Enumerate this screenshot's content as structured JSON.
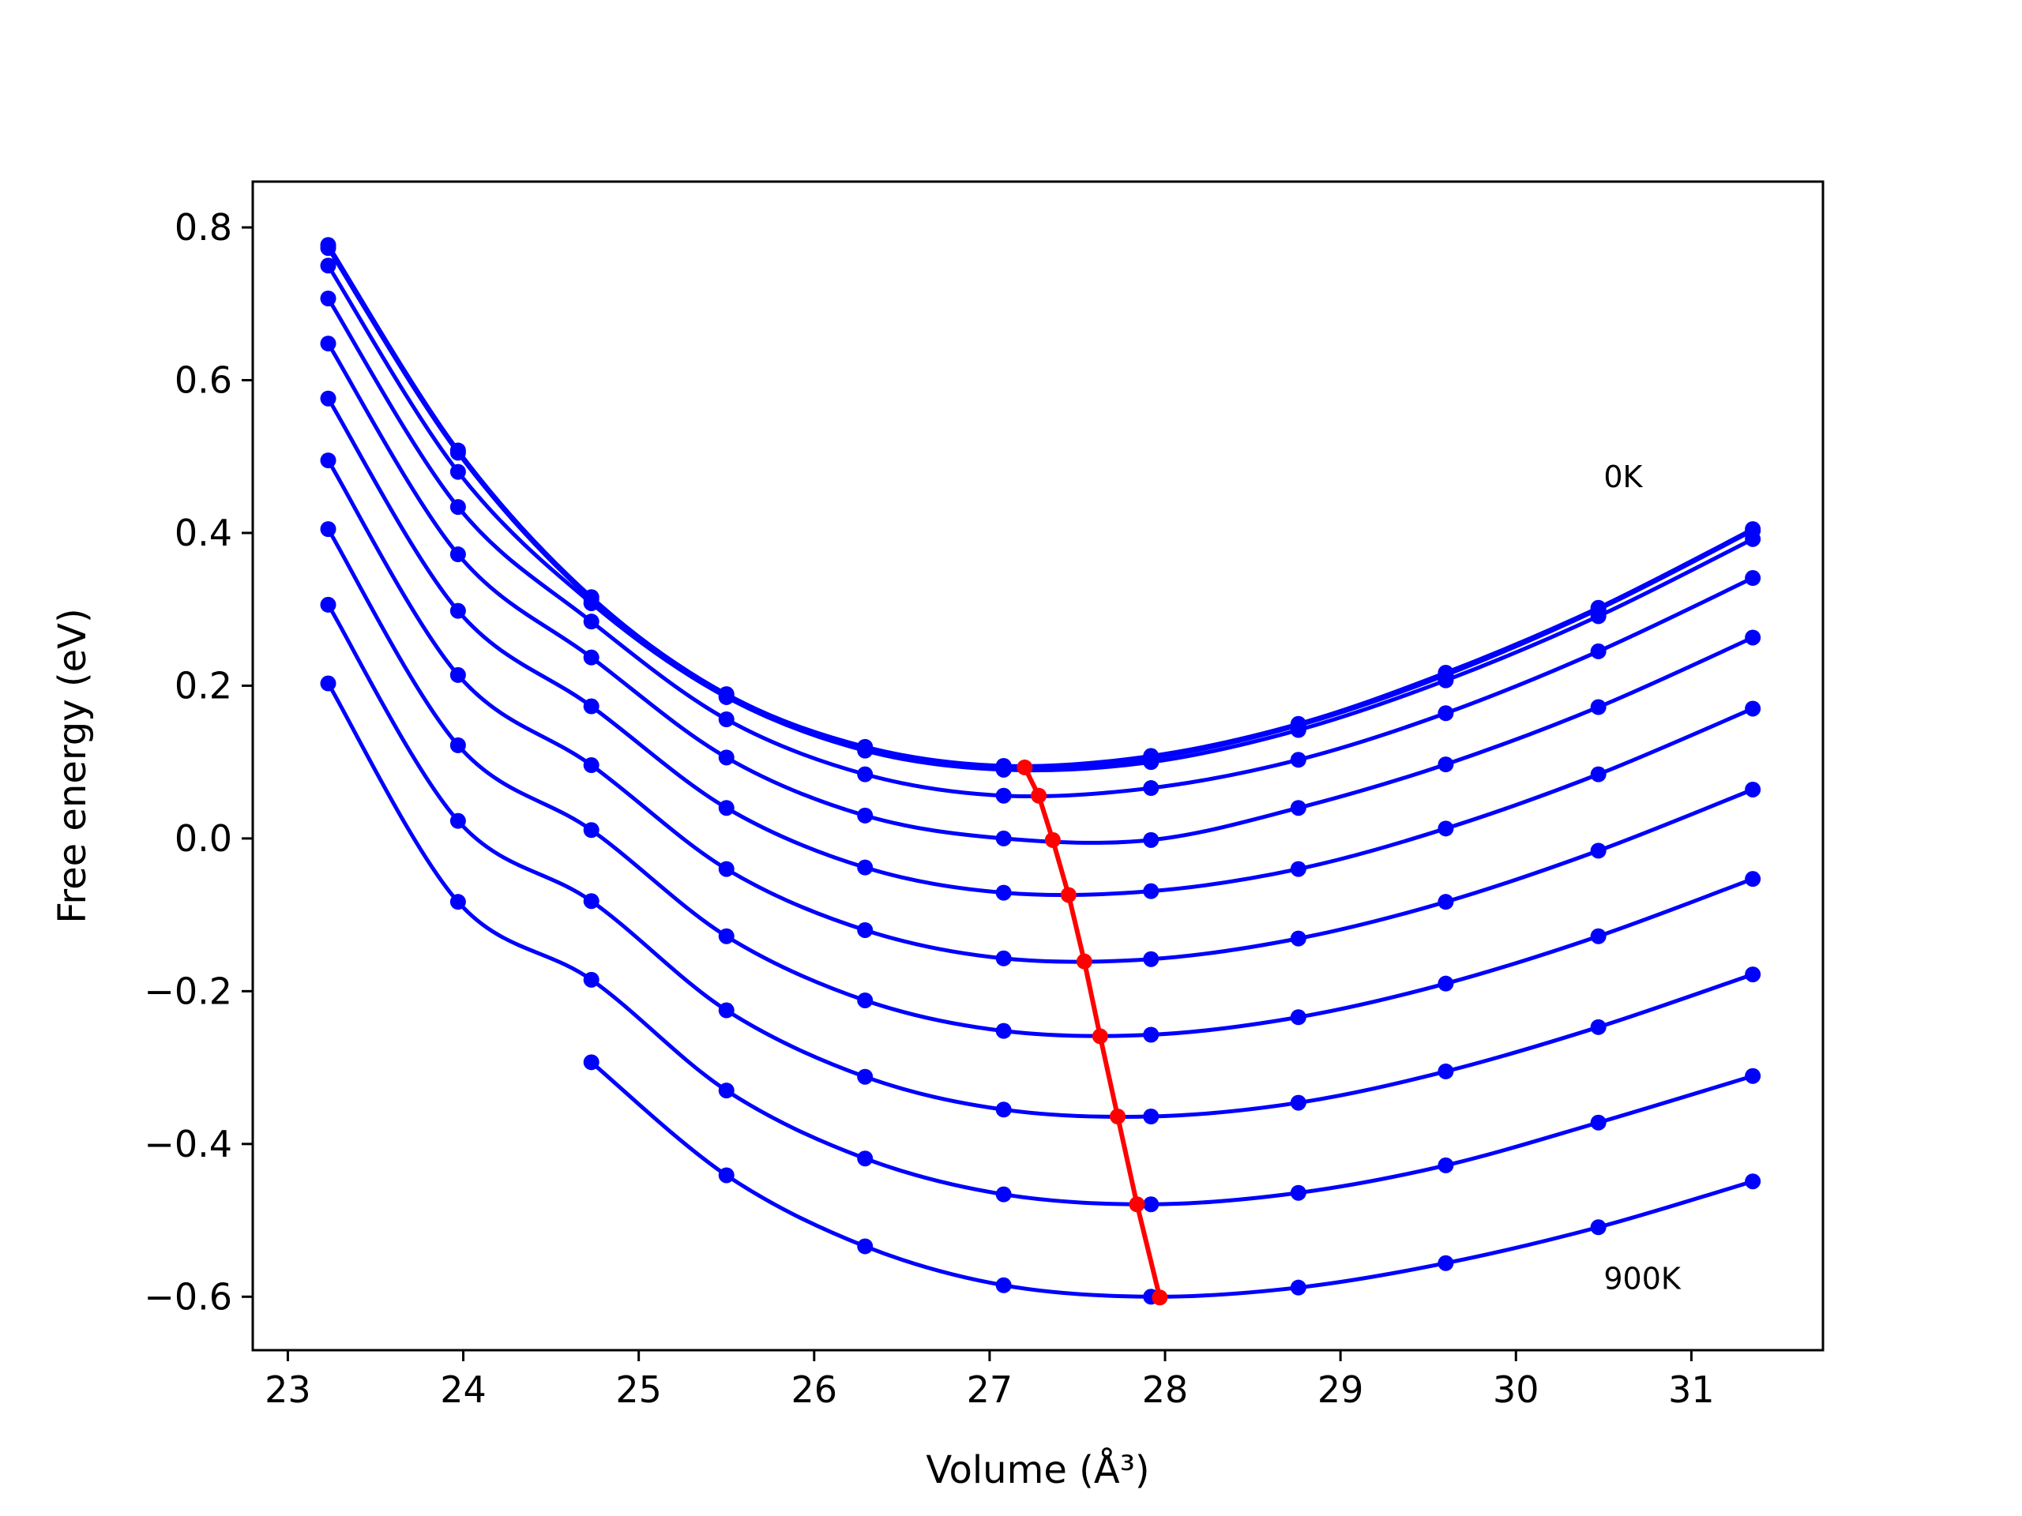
{
  "chart_data": {
    "type": "line",
    "title": "",
    "xlabel": "Volume (Å³)",
    "ylabel": "Free energy (eV)",
    "xlim": [
      22.8,
      31.75
    ],
    "ylim": [
      -0.67,
      0.86
    ],
    "xticks": [
      23,
      24,
      25,
      26,
      27,
      28,
      29,
      30,
      31
    ],
    "yticks": [
      -0.6,
      -0.4,
      -0.2,
      0.0,
      0.2,
      0.4,
      0.6,
      0.8
    ],
    "xtick_labels": [
      "23",
      "24",
      "25",
      "26",
      "27",
      "28",
      "29",
      "30",
      "31"
    ],
    "ytick_labels": [
      "−0.6",
      "−0.4",
      "−0.2",
      "0.0",
      "0.2",
      "0.4",
      "0.6",
      "0.8"
    ],
    "grid": false,
    "x": [
      23.23,
      23.97,
      24.73,
      25.5,
      26.29,
      27.08,
      27.92,
      28.76,
      29.6,
      30.47,
      31.35
    ],
    "series": [
      {
        "values": [
          0.777,
          0.508,
          0.316,
          0.189,
          0.12,
          0.095,
          0.108,
          0.15,
          0.217,
          0.302,
          0.405
        ]
      },
      {
        "values": [
          0.773,
          0.505,
          0.313,
          0.186,
          0.117,
          0.093,
          0.105,
          0.148,
          0.214,
          0.3,
          0.403
        ]
      },
      {
        "values": [
          0.75,
          0.48,
          0.308,
          0.185,
          0.115,
          0.09,
          0.1,
          0.142,
          0.207,
          0.291,
          0.392
        ]
      },
      {
        "values": [
          0.707,
          0.434,
          0.284,
          0.156,
          0.084,
          0.056,
          0.066,
          0.103,
          0.164,
          0.245,
          0.341
        ]
      },
      {
        "values": [
          0.648,
          0.372,
          0.237,
          0.106,
          0.03,
          0.0,
          -0.002,
          0.04,
          0.097,
          0.172,
          0.263
        ]
      },
      {
        "values": [
          0.576,
          0.298,
          0.173,
          0.04,
          -0.038,
          -0.071,
          -0.069,
          -0.04,
          0.013,
          0.084,
          0.17
        ]
      },
      {
        "values": [
          0.495,
          0.214,
          0.096,
          -0.04,
          -0.12,
          -0.157,
          -0.158,
          -0.131,
          -0.083,
          -0.016,
          0.064
        ]
      },
      {
        "values": [
          0.405,
          0.122,
          0.011,
          -0.128,
          -0.212,
          -0.252,
          -0.257,
          -0.234,
          -0.19,
          -0.128,
          -0.053
        ]
      },
      {
        "values": [
          0.306,
          0.023,
          -0.082,
          -0.225,
          -0.312,
          -0.355,
          -0.364,
          -0.346,
          -0.305,
          -0.247,
          -0.178
        ]
      },
      {
        "values": [
          0.203,
          -0.083,
          -0.185,
          -0.33,
          -0.419,
          -0.466,
          -0.479,
          -0.464,
          -0.428,
          -0.372,
          -0.311
        ]
      },
      {
        "values": [
          null,
          null,
          -0.293,
          -0.441,
          -0.534,
          -0.585,
          -0.6,
          -0.588,
          -0.556,
          -0.509,
          -0.449
        ]
      }
    ],
    "minima": {
      "x": [
        27.2,
        27.28,
        27.36,
        27.45,
        27.54,
        27.63,
        27.73,
        27.84,
        27.97
      ],
      "y": [
        0.093,
        0.056,
        -0.002,
        -0.074,
        -0.161,
        -0.259,
        -0.364,
        -0.479,
        -0.601
      ]
    },
    "colors": {
      "series": "#0000ff",
      "minima": "#ff0000"
    },
    "annotations": [
      {
        "text": "0K",
        "x": 30.5,
        "y": 0.46
      },
      {
        "text": "900K",
        "x": 30.5,
        "y": -0.59
      }
    ]
  }
}
